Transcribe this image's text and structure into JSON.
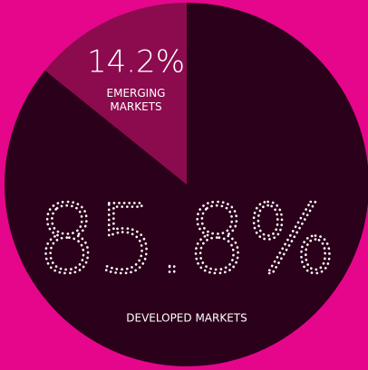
{
  "chart_data": {
    "type": "pie",
    "categories": [
      "EMERGING MARKETS",
      "DEVELOPED MARKETS"
    ],
    "values": [
      14.2,
      85.8
    ],
    "value_labels": [
      "14.2%",
      "85.8%"
    ],
    "colors": [
      "#8b0b4e",
      "#2b001a"
    ]
  }
}
